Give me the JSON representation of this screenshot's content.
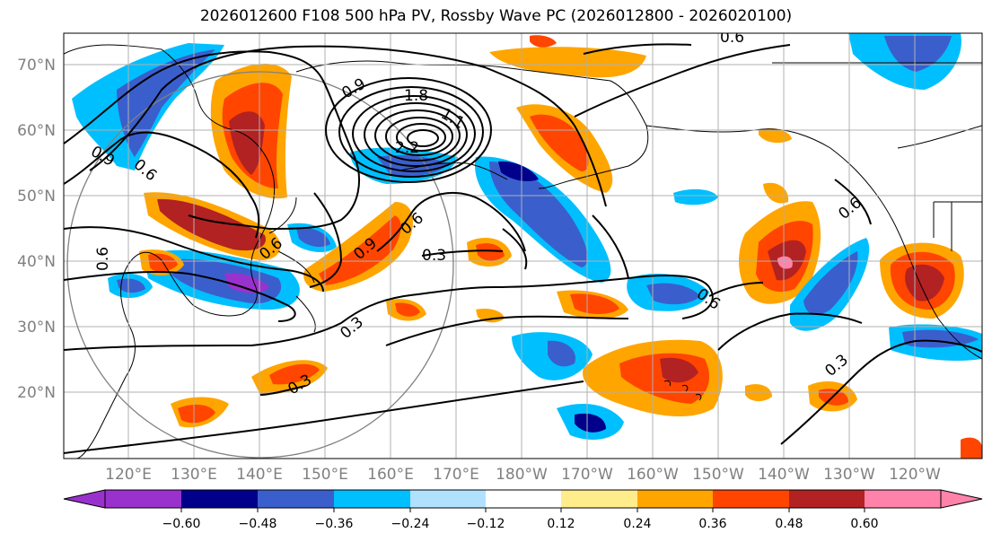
{
  "title": "2026012600 F108 500 hPa PV, Rossby Wave PC (2026012800 - 2026020100)",
  "map": {
    "lat_labels": [
      "70°N",
      "60°N",
      "50°N",
      "40°N",
      "30°N",
      "20°N"
    ],
    "lon_labels": [
      "120°E",
      "130°E",
      "140°E",
      "150°E",
      "160°E",
      "170°E",
      "180°W",
      "170°W",
      "160°W",
      "150°W",
      "140°W",
      "130°W",
      "120°W"
    ],
    "contour_labels": [
      "0.6",
      "0.9",
      "1.8",
      "1.1",
      "2.2",
      "0.6",
      "0.6",
      "0.9",
      "0.3",
      "0.6",
      "0.9",
      "0.6",
      "0.3",
      "0.6",
      "0.3",
      "0.3",
      "0.6"
    ],
    "colors": {
      "purple": "#9932cc",
      "navy": "#00008b",
      "royal": "#3a5fcd",
      "sky": "#00bfff",
      "pale_blue": "#b0e2ff",
      "white": "#ffffff",
      "pale_yellow": "#ffec8b",
      "orange": "#ffa500",
      "red_orange": "#ff4500",
      "firebrick": "#b22222",
      "pink": "#ff82ab"
    }
  },
  "colorbar": {
    "ticks": [
      "−0.60",
      "−0.48",
      "−0.36",
      "−0.24",
      "−0.12",
      "0.12",
      "0.24",
      "0.36",
      "0.48",
      "0.60"
    ],
    "bins": [
      "#9932cc",
      "#00008b",
      "#3a5fcd",
      "#00bfff",
      "#b0e2ff",
      "#ffffff",
      "#ffec8b",
      "#ffa500",
      "#ff4500",
      "#b22222",
      "#ff82ab"
    ]
  }
}
